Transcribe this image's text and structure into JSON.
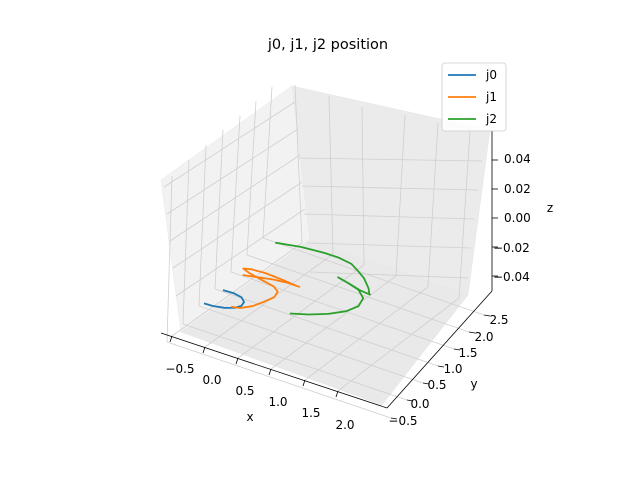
{
  "chart_data": {
    "type": "line",
    "subtype": "3d",
    "title": "j0, j1, j2 position",
    "xlabel": "x",
    "ylabel": "y",
    "zlabel": "z",
    "xticks": [
      "−0.5",
      "0.0",
      "0.5",
      "1.0",
      "1.5",
      "2.0"
    ],
    "yticks": [
      "−0.5",
      "0.0",
      "0.5",
      "1.0",
      "1.5",
      "2.0",
      "2.5"
    ],
    "zticks": [
      "−0.04",
      "−0.02",
      "0.00",
      "0.02",
      "0.04"
    ],
    "grid": true,
    "legend_position": "top-right",
    "series": [
      {
        "name": "j0",
        "color": "#1f77b4",
        "points": [
          [
            -0.05,
            0.55
          ],
          [
            0.11,
            0.56
          ],
          [
            0.24,
            0.53
          ],
          [
            0.32,
            0.45
          ],
          [
            0.33,
            0.35
          ],
          [
            0.27,
            0.26
          ],
          [
            0.15,
            0.19
          ],
          [
            0.0,
            0.15
          ],
          [
            -0.13,
            0.14
          ]
        ]
      },
      {
        "name": "j1",
        "color": "#ff7f0e",
        "points": [
          [
            0.02,
            1.0
          ],
          [
            0.18,
            1.05
          ],
          [
            0.42,
            1.12
          ],
          [
            0.62,
            1.15
          ],
          [
            0.8,
            1.15
          ],
          [
            0.76,
            1.15
          ],
          [
            0.52,
            1.18
          ],
          [
            0.26,
            1.2
          ],
          [
            0.06,
            1.18
          ],
          [
            -0.04,
            1.14
          ],
          [
            0.07,
            1.09
          ],
          [
            0.3,
            1.03
          ],
          [
            0.5,
            0.98
          ],
          [
            0.6,
            0.9
          ],
          [
            0.62,
            0.76
          ],
          [
            0.55,
            0.6
          ],
          [
            0.46,
            0.42
          ],
          [
            0.34,
            0.3
          ],
          [
            0.22,
            0.26
          ]
        ]
      },
      {
        "name": "j2",
        "color": "#2ca02c",
        "points": [
          [
            0.06,
            1.9
          ],
          [
            0.4,
            1.99
          ],
          [
            0.74,
            2.03
          ],
          [
            0.96,
            2.03
          ],
          [
            1.16,
            1.99
          ],
          [
            1.3,
            1.9
          ],
          [
            1.46,
            1.78
          ],
          [
            1.62,
            1.6
          ],
          [
            1.68,
            1.5
          ],
          [
            1.7,
            1.48
          ],
          [
            1.55,
            1.5
          ],
          [
            1.33,
            1.57
          ],
          [
            1.15,
            1.62
          ],
          [
            1.32,
            1.57
          ],
          [
            1.52,
            1.5
          ],
          [
            1.66,
            1.36
          ],
          [
            1.69,
            1.16
          ],
          [
            1.6,
            0.97
          ],
          [
            1.42,
            0.79
          ],
          [
            1.2,
            0.64
          ],
          [
            0.97,
            0.53
          ]
        ]
      }
    ]
  }
}
